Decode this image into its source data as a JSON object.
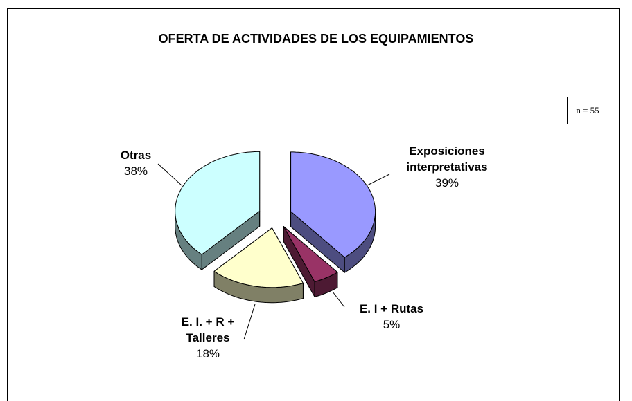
{
  "chart_data": {
    "type": "pie3d",
    "title": "OFERTA DE ACTIVIDADES DE LOS EQUIPAMIENTOS",
    "annotation": "n = 55",
    "categories": [
      "Exposiciones interpretativas",
      "E. I + Rutas",
      "E. I. + R + Talleres",
      "Otras"
    ],
    "values": [
      39,
      5,
      18,
      38
    ],
    "value_labels": [
      "39%",
      "5%",
      "18%",
      "38%"
    ],
    "colors": [
      "#9999ff",
      "#993366",
      "#ffffcc",
      "#ccffff"
    ],
    "exploded": true
  }
}
